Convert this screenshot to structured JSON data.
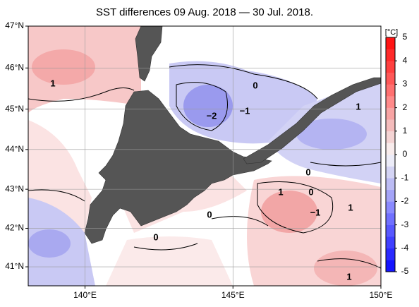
{
  "title": "SST differences 09 Aug. 2018 — 30 Jul. 2018.",
  "map": {
    "xlim": [
      138.08,
      150
    ],
    "ylim": [
      40.5,
      47
    ],
    "grid": true,
    "xticks": [
      {
        "value": 140,
        "label": "140°E"
      },
      {
        "value": 145,
        "label": "145°E"
      },
      {
        "value": 150,
        "label": "150°E"
      }
    ],
    "yticks": [
      {
        "value": 41,
        "label": "41°N"
      },
      {
        "value": 42,
        "label": "42°N"
      },
      {
        "value": 43,
        "label": "43°N"
      },
      {
        "value": 44,
        "label": "44°N"
      },
      {
        "value": 45,
        "label": "45°N"
      },
      {
        "value": 46,
        "label": "46°N"
      },
      {
        "value": 47,
        "label": "47°N"
      }
    ]
  },
  "colorbar": {
    "unit": "[°C]",
    "lim": [
      -5,
      5
    ],
    "ticks": [
      -5,
      -4,
      -3,
      -2,
      -1,
      0,
      1,
      2,
      3,
      4,
      5
    ],
    "colors": [
      "#1414ff",
      "#2a2aff",
      "#4040ff",
      "#5858ff",
      "#7070ff",
      "#8a8aff",
      "#a4a4f8",
      "#bcbcf4",
      "#d4d4f4",
      "#ececf8",
      "#f8ecec",
      "#f4d4d4",
      "#f4bcbc",
      "#f8a4a4",
      "#ff8a8a",
      "#ff7070",
      "#ff5858",
      "#ff4040",
      "#ff2a2a",
      "#ff1414"
    ]
  },
  "contour_labels": [
    "1",
    "0",
    "−2",
    "−1",
    "1",
    "0",
    "1",
    "0",
    "−1",
    "1",
    "0",
    "0",
    "1"
  ]
}
